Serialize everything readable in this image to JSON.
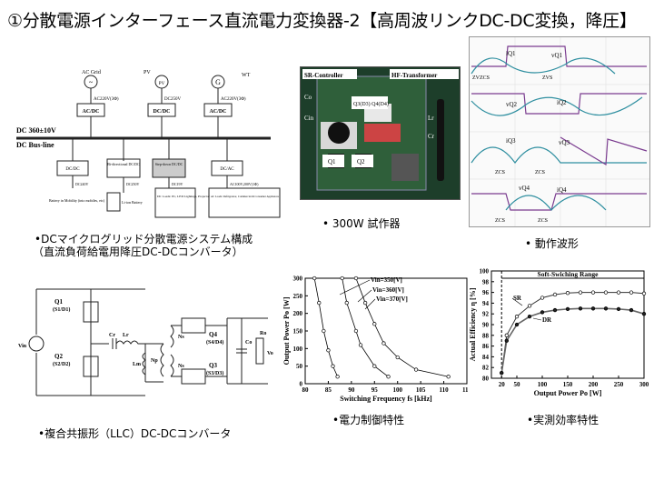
{
  "slide": {
    "title": "①分散電源インターフェース直流電力変換器-2【高周波リンクDC-DC変換，降圧】"
  },
  "captions": {
    "microgrid": "•DCマイクログリッド分散電源システム構成",
    "microgrid_sub": "（直流負荷給電用降圧DC-DCコンバータ）",
    "prototype": "• 300W 試作器",
    "waveforms": "• 動作波形",
    "llc": "•複合共振形（LLC）DC-DCコンバータ",
    "power_control": "•電力制御特性",
    "efficiency": "•実測効率特性"
  },
  "microgrid": {
    "sources": [
      {
        "icon": "~",
        "name": "AC Grid",
        "rating": "AC220V(3Φ)",
        "box": "AC/DC"
      },
      {
        "icon": "PV",
        "name": "PV",
        "rating": "DC250V",
        "box": "DC/DC"
      },
      {
        "icon": "G",
        "name": "WT",
        "rating": "AC220V(3Φ)",
        "box": "AC/DC"
      }
    ],
    "bus_label_1": "DC 360±10V",
    "bus_label_2": "DC Bus-line",
    "loads": [
      {
        "box": "DC/DC",
        "rating": "DC240V",
        "desc": "Battery in Mobility (into mobiles, etc)"
      },
      {
        "box": "Bi-directional DC/DC",
        "rating": "DC250V",
        "desc": "Li-ion Battery"
      },
      {
        "box": "Step-down DC/DC",
        "rating": "DC19V",
        "desc": "DC Loads: PC, LED Lightings, Projector"
      },
      {
        "box": "DC/AC",
        "rating": "AC100V,200V(1Φ)",
        "desc": "AC Loads: Refrigerator, Commercial & Consumer Appliances"
      }
    ]
  },
  "prototype": {
    "label_controller": "SR-Controller",
    "label_transformer": "HF-Transformer",
    "label_q34": "Q3(D3) Q4(D4)",
    "label_q1": "Q1",
    "label_q2": "Q2",
    "side_labels": [
      "Co",
      "Cin",
      "Lr",
      "Cr"
    ]
  },
  "waveforms": {
    "labels": [
      "iQ1",
      "vQ1",
      "ZVZCS",
      "ZVS",
      "vQ2",
      "iQ2",
      "iQ3",
      "vQ3",
      "ZCS",
      "ZCS",
      "vQ4",
      "iQ4",
      "ZCS",
      "ZCS"
    ]
  },
  "llc": {
    "labels": [
      "Q1",
      "(S1/D1)",
      "Q2",
      "(S2/D2)",
      "Vin",
      "Cr",
      "Lr",
      "Lm",
      "Np",
      "Ns",
      "Ns",
      "Q4",
      "(S4/D4)",
      "Q3",
      "(S3/D3)",
      "Co",
      "Ro",
      "Vo"
    ]
  },
  "chart_data": [
    {
      "type": "line",
      "xlabel": "Switching Frequency fs [kHz]",
      "ylabel": "Output Power Po [W]",
      "xlim": [
        80,
        115
      ],
      "ylim": [
        0,
        300
      ],
      "xticks": [
        80,
        85,
        90,
        95,
        100,
        105,
        110,
        115
      ],
      "yticks": [
        0,
        50,
        100,
        150,
        200,
        250,
        300
      ],
      "series": [
        {
          "name": "Vin=350[V]",
          "x": [
            82,
            83,
            84,
            85,
            86,
            87
          ],
          "y": [
            300,
            230,
            150,
            95,
            50,
            20
          ]
        },
        {
          "name": "Vin=360[V]",
          "x": [
            88,
            89,
            91,
            92,
            95,
            98
          ],
          "y": [
            300,
            230,
            150,
            110,
            50,
            20
          ]
        },
        {
          "name": "Vin=370[V]",
          "x": [
            91,
            93,
            95,
            97,
            100,
            104,
            111
          ],
          "y": [
            300,
            230,
            170,
            115,
            75,
            40,
            20
          ]
        }
      ],
      "markers": "circle"
    },
    {
      "type": "line",
      "title": "Soft-Swiching Range",
      "xlabel": "Output Power Po [W]",
      "ylabel": "Actual Efficiency η [%]",
      "xlim": [
        0,
        300
      ],
      "ylim": [
        80,
        100
      ],
      "xticks": [
        20,
        50,
        100,
        150,
        200,
        250,
        300
      ],
      "yticks": [
        80,
        82,
        84,
        86,
        88,
        90,
        92,
        94,
        96,
        98,
        100
      ],
      "series": [
        {
          "name": "SR",
          "x": [
            20,
            30,
            50,
            75,
            100,
            125,
            150,
            175,
            200,
            225,
            250,
            275,
            300
          ],
          "y": [
            81,
            88,
            91.5,
            93.5,
            95,
            95.6,
            95.9,
            96,
            96,
            96,
            96,
            96,
            95.8
          ]
        },
        {
          "name": "DR",
          "x": [
            20,
            30,
            50,
            75,
            100,
            125,
            150,
            175,
            200,
            225,
            250,
            275,
            300
          ],
          "y": [
            81,
            87,
            90,
            91.5,
            92.3,
            92.7,
            92.9,
            93,
            93,
            93,
            92.9,
            92.7,
            92
          ]
        }
      ],
      "soft_switching_range": [
        20,
        300
      ]
    }
  ]
}
